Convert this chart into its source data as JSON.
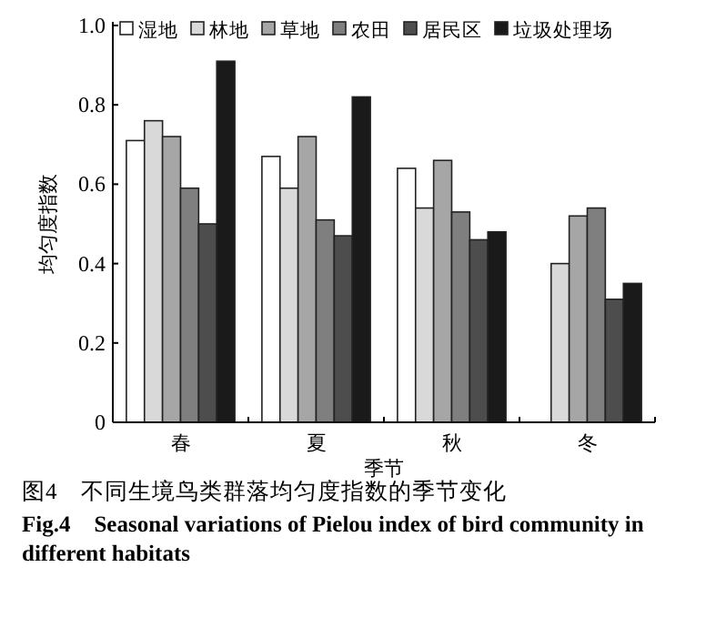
{
  "chart_data": {
    "type": "bar",
    "title": "图4　不同生境鸟类群落均匀度指数的季节变化",
    "subtitle": "Fig.4　Seasonal variations of Pielou index of bird community in different habitats",
    "xlabel": "季节",
    "ylabel": "均匀度指数",
    "categories": [
      "春",
      "夏",
      "秋",
      "冬"
    ],
    "series": [
      {
        "name": "湿地",
        "color": "#ffffff",
        "values": [
          0.71,
          0.67,
          0.64,
          null
        ]
      },
      {
        "name": "林地",
        "color": "#d9d9d9",
        "values": [
          0.76,
          0.59,
          0.54,
          0.4
        ]
      },
      {
        "name": "草地",
        "color": "#a6a6a6",
        "values": [
          0.72,
          0.72,
          0.66,
          0.52
        ]
      },
      {
        "name": "农田",
        "color": "#7f7f7f",
        "values": [
          0.59,
          0.51,
          0.53,
          0.54
        ]
      },
      {
        "name": "居民区",
        "color": "#4d4d4d",
        "values": [
          0.5,
          0.47,
          0.46,
          0.31
        ]
      },
      {
        "name": "垃圾处理场",
        "color": "#1a1a1a",
        "values": [
          0.91,
          0.82,
          0.48,
          0.35
        ]
      }
    ],
    "ylim": [
      0,
      1.0
    ],
    "yticks": [
      0,
      {
        "value": 0.2,
        "label": "0.2"
      },
      {
        "value": 0.4,
        "label": "0.4"
      },
      {
        "value": 0.6,
        "label": "0.6"
      },
      {
        "value": 0.8,
        "label": "0.8"
      },
      {
        "value": 1.0,
        "label": "1.0"
      }
    ],
    "legend": "top",
    "grid": false
  }
}
